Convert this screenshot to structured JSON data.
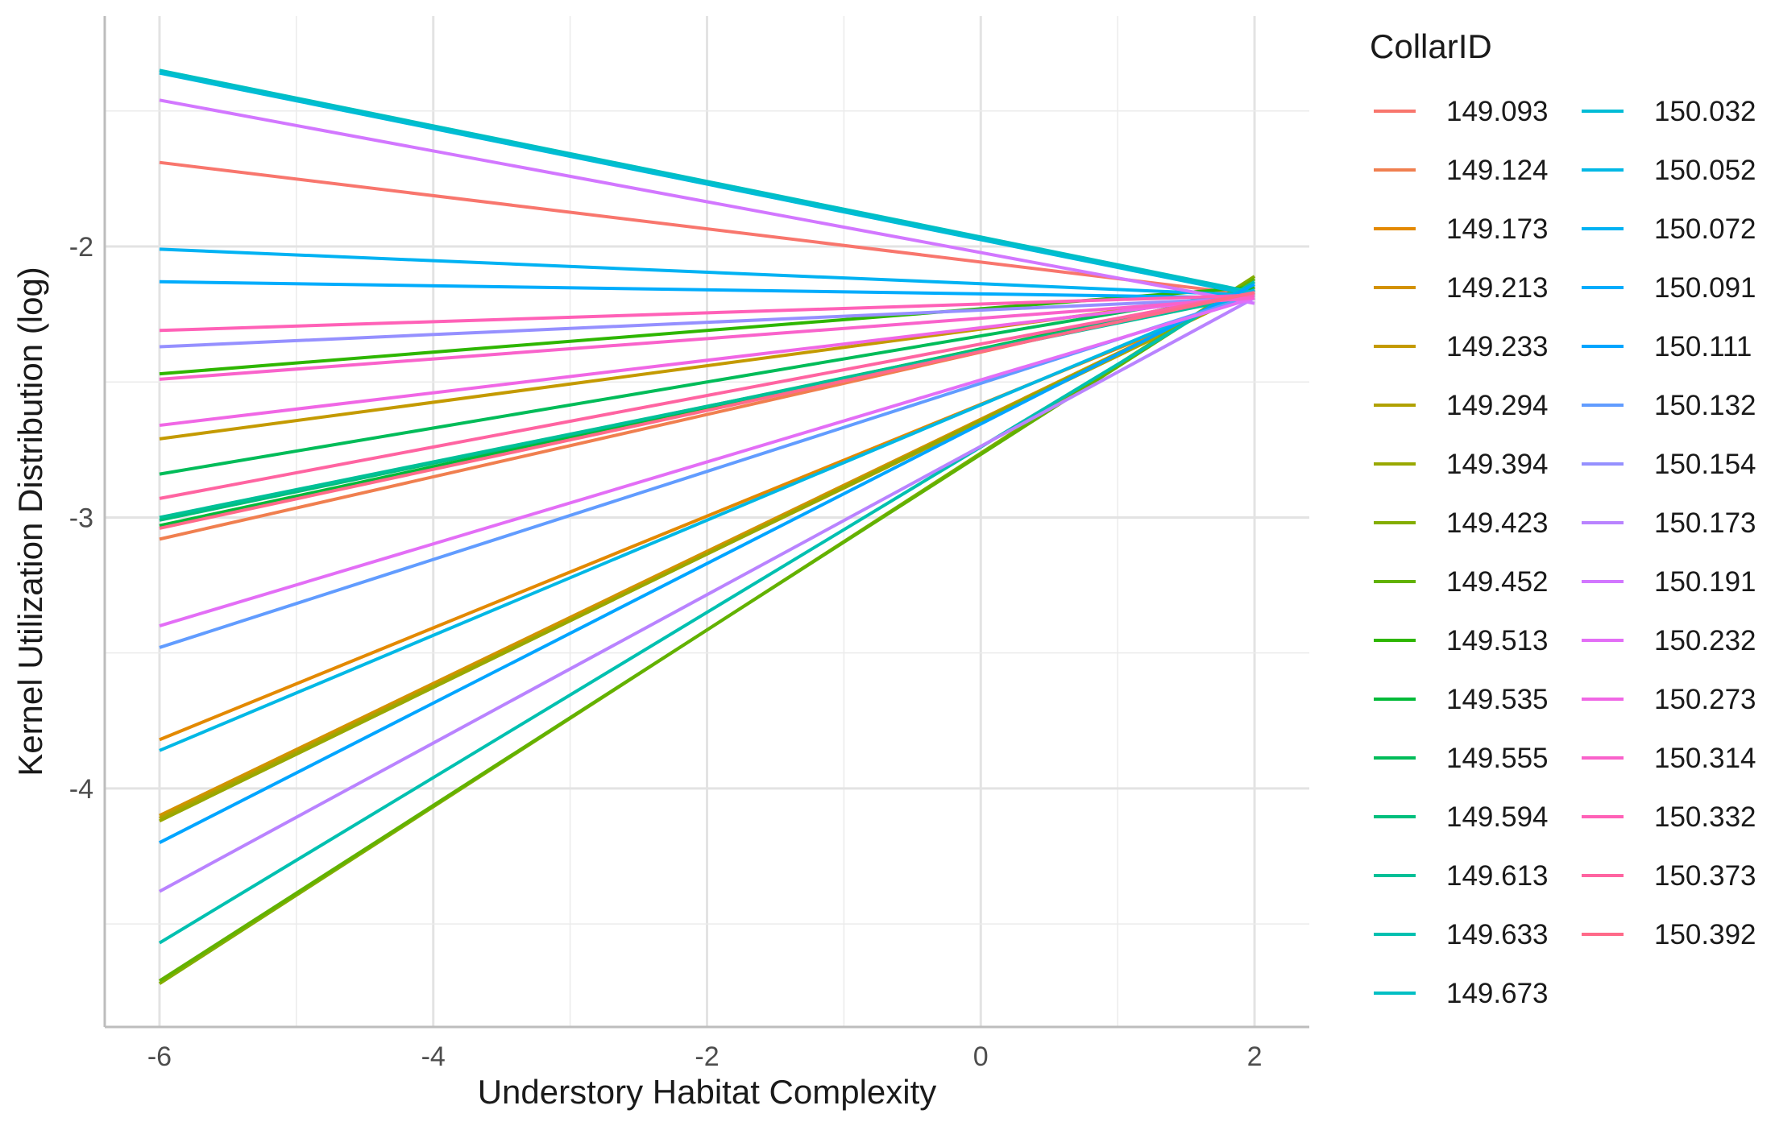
{
  "chart_data": {
    "type": "line",
    "title": "",
    "xlabel": "Understory Habitat Complexity",
    "ylabel": "Kernel Utilization Distribution (log)",
    "xlim": [
      -6.4,
      2.4
    ],
    "ylim": [
      -4.88,
      -1.15
    ],
    "x_ticks": [
      -6,
      -4,
      -2,
      0,
      2
    ],
    "x_tick_labels": [
      "-6",
      "-4",
      "-2",
      "0",
      "2"
    ],
    "y_ticks": [
      -2,
      -3,
      -4
    ],
    "y_tick_labels": [
      "-2",
      "-3",
      "-4"
    ],
    "grid": true,
    "legend_title": "CollarID",
    "legend_position": "right",
    "x": [
      -6,
      2
    ],
    "series": [
      {
        "name": "149.093",
        "color": "#F8766D",
        "values": [
          -1.69,
          -2.18
        ]
      },
      {
        "name": "149.124",
        "color": "#F07F4F",
        "values": [
          -3.08,
          -2.16
        ]
      },
      {
        "name": "149.173",
        "color": "#E38900",
        "values": [
          -3.82,
          -2.17
        ]
      },
      {
        "name": "149.213",
        "color": "#D39200",
        "values": [
          -4.1,
          -2.15
        ]
      },
      {
        "name": "149.233",
        "color": "#C49A00",
        "values": [
          -2.71,
          -2.17
        ]
      },
      {
        "name": "149.294",
        "color": "#B0A100",
        "values": [
          -4.11,
          -2.16
        ]
      },
      {
        "name": "149.394",
        "color": "#99A800",
        "values": [
          -4.12,
          -2.15
        ]
      },
      {
        "name": "149.423",
        "color": "#83AD00",
        "values": [
          -4.72,
          -2.11
        ]
      },
      {
        "name": "149.452",
        "color": "#62B200",
        "values": [
          -4.71,
          -2.12
        ]
      },
      {
        "name": "149.513",
        "color": "#2EB600",
        "values": [
          -2.47,
          -2.15
        ]
      },
      {
        "name": "149.535",
        "color": "#00BA38",
        "values": [
          -3.03,
          -2.16
        ]
      },
      {
        "name": "149.555",
        "color": "#00BC59",
        "values": [
          -2.84,
          -2.16
        ]
      },
      {
        "name": "149.594",
        "color": "#00BF7D",
        "values": [
          -3.01,
          -2.17
        ]
      },
      {
        "name": "149.613",
        "color": "#00C098",
        "values": [
          -3.0,
          -2.18
        ]
      },
      {
        "name": "149.633",
        "color": "#00C0B0",
        "values": [
          -4.57,
          -2.13
        ]
      },
      {
        "name": "149.673",
        "color": "#00BFC4",
        "values": [
          -1.35,
          -2.17
        ]
      },
      {
        "name": "150.032",
        "color": "#00BCD6",
        "values": [
          -1.36,
          -2.18
        ]
      },
      {
        "name": "150.052",
        "color": "#00B8E5",
        "values": [
          -3.86,
          -2.16
        ]
      },
      {
        "name": "150.072",
        "color": "#00B2F3",
        "values": [
          -2.01,
          -2.18
        ]
      },
      {
        "name": "150.091",
        "color": "#00ACFC",
        "values": [
          -2.13,
          -2.19
        ]
      },
      {
        "name": "150.111",
        "color": "#00A5FF",
        "values": [
          -4.2,
          -2.14
        ]
      },
      {
        "name": "150.132",
        "color": "#619CFF",
        "values": [
          -3.48,
          -2.18
        ]
      },
      {
        "name": "150.154",
        "color": "#9590FF",
        "values": [
          -2.37,
          -2.19
        ]
      },
      {
        "name": "150.173",
        "color": "#B983FF",
        "values": [
          -4.38,
          -2.19
        ]
      },
      {
        "name": "150.191",
        "color": "#D277FF",
        "values": [
          -1.46,
          -2.21
        ]
      },
      {
        "name": "150.232",
        "color": "#E36EF6",
        "values": [
          -3.4,
          -2.19
        ]
      },
      {
        "name": "150.273",
        "color": "#F067E5",
        "values": [
          -2.66,
          -2.18
        ]
      },
      {
        "name": "150.314",
        "color": "#F962CB",
        "values": [
          -2.49,
          -2.19
        ]
      },
      {
        "name": "150.332",
        "color": "#FF61B7",
        "values": [
          -2.31,
          -2.18
        ]
      },
      {
        "name": "150.373",
        "color": "#FF64A1",
        "values": [
          -2.93,
          -2.17
        ]
      },
      {
        "name": "150.392",
        "color": "#FF6A89",
        "values": [
          -3.04,
          -2.17
        ]
      }
    ]
  }
}
